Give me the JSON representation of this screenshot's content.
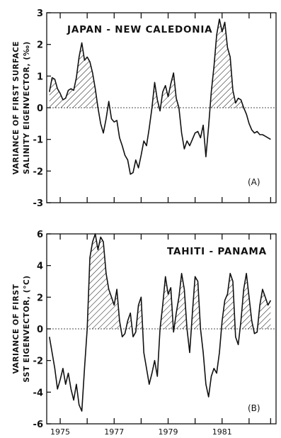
{
  "chart_data": [
    {
      "type": "area",
      "panel_label": "(A)",
      "title": "JAPAN - NEW CALEDONIA",
      "ylabel_line1": "VARIANCE OF FIRST SURFACE",
      "ylabel_line2": "SALINITY EIGENVECTOR, (‰)",
      "ylim": [
        -3,
        3
      ],
      "yticks": [
        "3",
        "2",
        "1",
        "0",
        "-1",
        "-2",
        "-3"
      ],
      "ytick_values": [
        3,
        2,
        1,
        0,
        -1,
        -2,
        -3
      ],
      "xlim": [
        1974.0,
        1982.5
      ],
      "shading": "positive values hatched",
      "series": [
        {
          "x": [
            1974.1,
            1974.2,
            1974.3,
            1974.4,
            1974.5,
            1974.6,
            1974.7,
            1974.8,
            1974.9,
            1975.0,
            1975.1,
            1975.2,
            1975.3,
            1975.4,
            1975.5,
            1975.6,
            1975.7,
            1975.8,
            1975.9,
            1976.0,
            1976.1,
            1976.2,
            1976.3,
            1976.4,
            1976.5,
            1976.6,
            1976.7,
            1976.8,
            1976.9,
            1977.0,
            1977.1,
            1977.2,
            1977.3,
            1977.4,
            1977.5,
            1977.6,
            1977.7,
            1977.8,
            1977.9,
            1978.0,
            1978.1,
            1978.2,
            1978.3,
            1978.4,
            1978.5,
            1978.6,
            1978.7,
            1978.8,
            1978.9,
            1979.0,
            1979.1,
            1979.2,
            1979.3,
            1979.4,
            1979.5,
            1979.6,
            1979.7,
            1979.8,
            1979.9,
            1980.0,
            1980.1,
            1980.2,
            1980.3,
            1980.4,
            1980.5,
            1980.6,
            1980.7,
            1980.8,
            1980.9,
            1981.0,
            1981.1,
            1981.2,
            1981.3,
            1981.4,
            1981.5,
            1981.6,
            1981.7,
            1981.8,
            1981.9,
            1982.0,
            1982.1,
            1982.2,
            1982.3
          ],
          "y": [
            0.5,
            0.95,
            0.9,
            0.6,
            0.45,
            0.25,
            0.3,
            0.55,
            0.6,
            0.55,
            0.95,
            1.6,
            2.05,
            1.5,
            1.6,
            1.45,
            1.1,
            0.6,
            0.0,
            -0.5,
            -0.8,
            -0.35,
            0.2,
            -0.35,
            -0.45,
            -0.4,
            -0.95,
            -1.2,
            -1.5,
            -1.65,
            -2.1,
            -2.05,
            -1.65,
            -1.9,
            -1.5,
            -1.05,
            -1.2,
            -0.65,
            0.0,
            0.8,
            0.25,
            -0.1,
            0.5,
            0.7,
            0.35,
            0.75,
            1.1,
            0.3,
            0.0,
            -0.8,
            -1.3,
            -1.05,
            -1.2,
            -1.0,
            -0.8,
            -0.75,
            -0.95,
            -0.55,
            -1.55,
            -0.6,
            0.5,
            1.3,
            2.3,
            2.8,
            2.4,
            2.7,
            1.9,
            1.6,
            0.55,
            0.15,
            0.3,
            0.25,
            0.0,
            -0.2,
            -0.5,
            -0.7,
            -0.8,
            -0.75,
            -0.85,
            -0.85,
            -0.9,
            -0.95,
            -1.0
          ]
        }
      ]
    },
    {
      "type": "area",
      "panel_label": "(B)",
      "title": "TAHITI - PANAMA",
      "ylabel_line1": "VARIANCE OF FIRST",
      "ylabel_line2": "SST EIGENVECTOR, (°C)",
      "ylim": [
        -6,
        6
      ],
      "yticks": [
        "6",
        "4",
        "2",
        "0",
        "-2",
        "-4",
        "-6"
      ],
      "ytick_values": [
        6,
        4,
        2,
        0,
        -2,
        -4,
        -6
      ],
      "xlim": [
        1974.0,
        1982.5
      ],
      "x_tick_labels": [
        "1975",
        "1977",
        "1979",
        "1981"
      ],
      "x_tick_values": [
        1974.5,
        1976.5,
        1978.5,
        1980.5
      ],
      "shading": "positive values hatched",
      "series": [
        {
          "x": [
            1974.1,
            1974.2,
            1974.3,
            1974.4,
            1974.5,
            1974.6,
            1974.7,
            1974.8,
            1974.9,
            1975.0,
            1975.1,
            1975.2,
            1975.3,
            1975.4,
            1975.5,
            1975.6,
            1975.7,
            1975.8,
            1975.9,
            1976.0,
            1976.1,
            1976.2,
            1976.3,
            1976.4,
            1976.5,
            1976.6,
            1976.7,
            1976.8,
            1976.9,
            1977.0,
            1977.1,
            1977.2,
            1977.3,
            1977.4,
            1977.5,
            1977.6,
            1977.7,
            1977.8,
            1977.9,
            1978.0,
            1978.1,
            1978.2,
            1978.3,
            1978.4,
            1978.5,
            1978.6,
            1978.7,
            1978.8,
            1978.9,
            1979.0,
            1979.1,
            1979.2,
            1979.3,
            1979.4,
            1979.5,
            1979.6,
            1979.7,
            1979.8,
            1979.9,
            1980.0,
            1980.1,
            1980.2,
            1980.3,
            1980.4,
            1980.5,
            1980.6,
            1980.7,
            1980.8,
            1980.9,
            1981.0,
            1981.1,
            1981.2,
            1981.3,
            1981.4,
            1981.5,
            1981.6,
            1981.7,
            1981.8,
            1981.9,
            1982.0,
            1982.1,
            1982.2,
            1982.3
          ],
          "y": [
            -0.5,
            -1.5,
            -2.5,
            -3.8,
            -3.2,
            -2.5,
            -3.5,
            -2.8,
            -3.8,
            -4.5,
            -3.5,
            -4.8,
            -5.2,
            -2.5,
            0.0,
            4.5,
            5.5,
            6.0,
            5.0,
            5.8,
            5.5,
            3.5,
            2.5,
            2.0,
            1.5,
            2.5,
            0.5,
            -0.5,
            -0.3,
            0.5,
            1.0,
            -0.5,
            -0.2,
            1.5,
            2.0,
            -1.5,
            -2.5,
            -3.5,
            -2.8,
            -2.0,
            -3.0,
            0.0,
            1.5,
            3.3,
            2.2,
            2.6,
            -0.2,
            1.0,
            2.0,
            3.5,
            2.5,
            0.0,
            -1.5,
            1.0,
            3.3,
            3.0,
            0.0,
            -1.5,
            -3.5,
            -4.3,
            -3.0,
            -2.5,
            -2.8,
            -1.5,
            0.5,
            1.8,
            2.2,
            3.5,
            3.0,
            -0.5,
            -1.0,
            0.5,
            2.5,
            3.5,
            2.0,
            0.5,
            -0.3,
            -0.2,
            1.5,
            2.5,
            2.0,
            1.5,
            1.8
          ]
        }
      ]
    }
  ]
}
